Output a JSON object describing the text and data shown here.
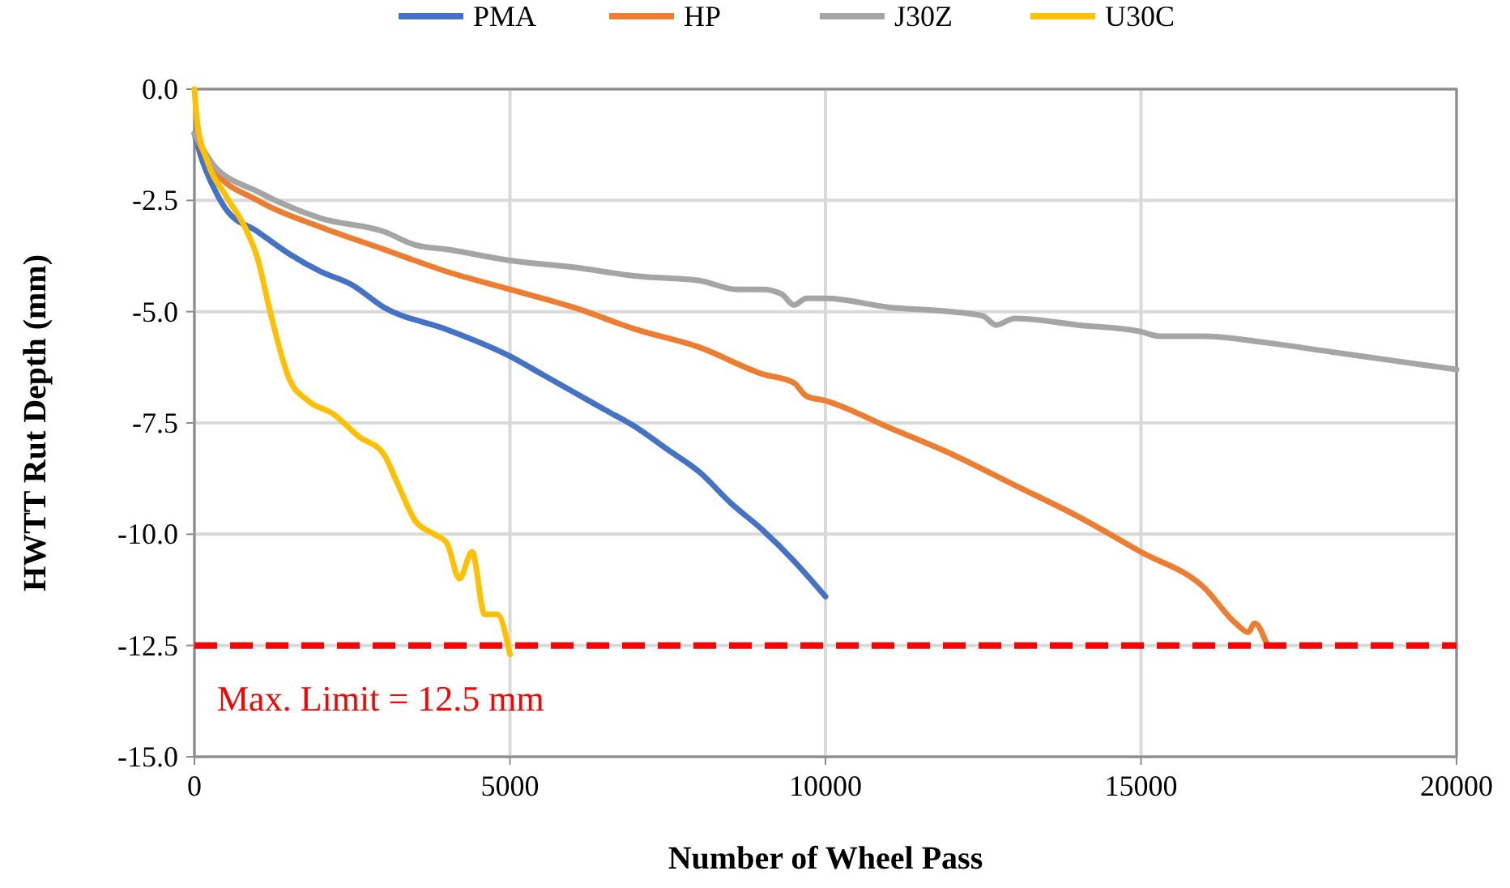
{
  "chart_data": {
    "type": "line",
    "xlabel": "Number of Wheel Pass",
    "ylabel": "HWTT Rut Depth (mm)",
    "xlim": [
      0,
      20000
    ],
    "xticks": [
      0,
      5000,
      10000,
      15000,
      20000
    ],
    "ylim": [
      -15,
      0
    ],
    "yticks": [
      {
        "value": 0,
        "label": "0.0"
      },
      {
        "value": -2.5,
        "label": "-2.5"
      },
      {
        "value": -5,
        "label": "-5.0"
      },
      {
        "value": -7.5,
        "label": "-7.5"
      },
      {
        "value": -10,
        "label": "-10.0"
      },
      {
        "value": -12.5,
        "label": "-12.5"
      },
      {
        "value": -15,
        "label": "-15.0"
      }
    ],
    "grid": true,
    "legend": "top",
    "marker": "none",
    "line_style": "solid",
    "ref_lines": [
      {
        "axis": "y",
        "value": -12.5,
        "color": "#ff0000",
        "line_style": "dashed"
      }
    ],
    "annotations": [
      "Max. Limit = 12.5 mm"
    ],
    "series": [
      {
        "name": "PMA",
        "color": "#4472c4",
        "x": [
          0,
          100,
          300,
          500,
          1000,
          1500,
          2000,
          2500,
          3000,
          4000,
          5000,
          5500,
          6000,
          6500,
          7000,
          7500,
          8000,
          8500,
          9000,
          9500,
          10000
        ],
        "values": [
          -1.0,
          -1.5,
          -2.2,
          -2.7,
          -3.2,
          -3.7,
          -4.1,
          -4.4,
          -4.9,
          -5.4,
          -6.0,
          -6.4,
          -6.8,
          -7.2,
          -7.6,
          -8.1,
          -8.6,
          -9.3,
          -9.9,
          -10.6,
          -11.4
        ]
      },
      {
        "name": "HP",
        "color": "#ed7d31",
        "x": [
          0,
          300,
          1000,
          2000,
          3000,
          4000,
          5000,
          6000,
          7000,
          8000,
          9000,
          9500,
          9700,
          10000,
          11000,
          12000,
          13000,
          14000,
          15000,
          16000,
          16500,
          16700,
          16800,
          17000
        ],
        "values": [
          -1.0,
          -1.8,
          -2.5,
          -3.1,
          -3.6,
          -4.1,
          -4.5,
          -4.9,
          -5.4,
          -5.8,
          -6.4,
          -6.6,
          -6.9,
          -7.0,
          -7.6,
          -8.2,
          -8.9,
          -9.6,
          -10.4,
          -11.2,
          -12.0,
          -12.2,
          -12.0,
          -12.5
        ]
      },
      {
        "name": "J30Z",
        "color": "#a5a5a5",
        "x": [
          0,
          300,
          1000,
          2000,
          3000,
          3500,
          4000,
          5000,
          6000,
          7000,
          8000,
          8600,
          9000,
          9300,
          9500,
          9700,
          10000,
          11000,
          12000,
          12500,
          12700,
          13000,
          14000,
          15000,
          15300,
          16000,
          17000,
          18000,
          19000,
          20000
        ],
        "values": [
          -1.0,
          -1.7,
          -2.3,
          -2.9,
          -3.2,
          -3.5,
          -3.6,
          -3.85,
          -4.0,
          -4.2,
          -4.3,
          -4.5,
          -4.5,
          -4.6,
          -4.85,
          -4.7,
          -4.7,
          -4.9,
          -5.0,
          -5.1,
          -5.3,
          -5.15,
          -5.3,
          -5.45,
          -5.55,
          -5.55,
          -5.7,
          -5.9,
          -6.1,
          -6.3
        ]
      },
      {
        "name": "U30C",
        "color": "#ffc000",
        "x": [
          0,
          50,
          200,
          500,
          800,
          1000,
          1200,
          1500,
          1800,
          2200,
          2600,
          3000,
          3200,
          3500,
          3800,
          4000,
          4200,
          4400,
          4600,
          4800,
          5000
        ],
        "values": [
          0,
          -0.8,
          -1.6,
          -2.4,
          -3.1,
          -3.8,
          -5.0,
          -6.5,
          -7.0,
          -7.3,
          -7.8,
          -8.2,
          -8.8,
          -9.7,
          -10.0,
          -10.2,
          -11.0,
          -10.4,
          -11.8,
          -11.8,
          -12.7
        ]
      }
    ]
  }
}
